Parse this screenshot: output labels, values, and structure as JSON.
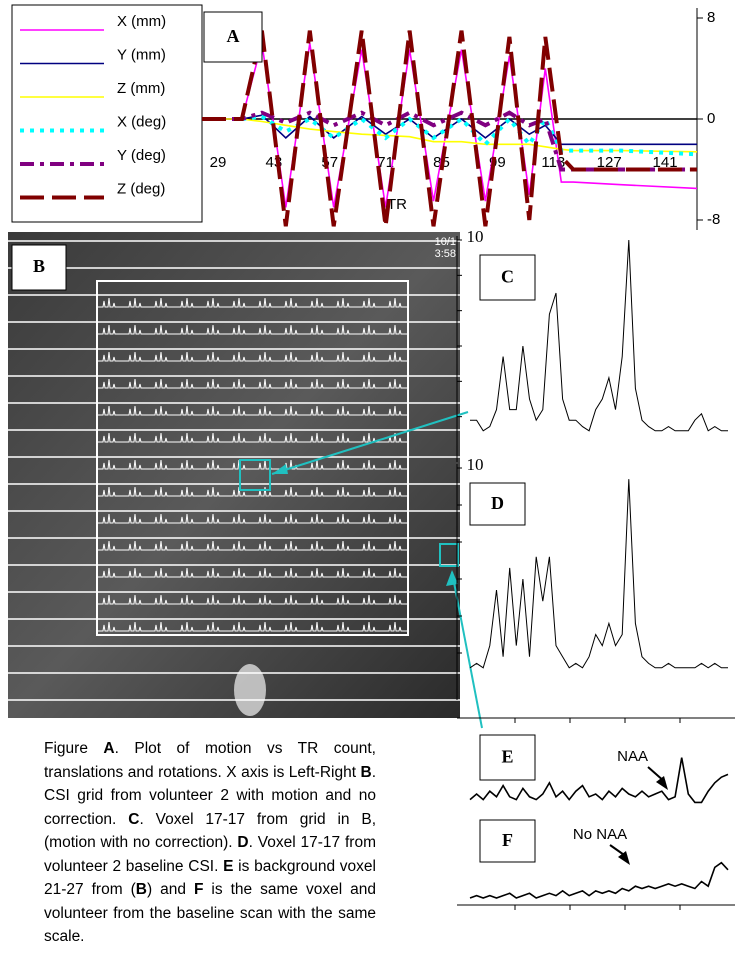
{
  "chart_data": [
    {
      "type": "line",
      "panel": "A",
      "xlabel": "TR",
      "x": [
        25,
        35,
        40,
        46,
        52,
        58,
        65,
        71,
        77,
        83,
        90,
        96,
        102,
        107,
        111,
        115,
        118,
        130,
        149
      ],
      "xlim": [
        25,
        149
      ],
      "xticks": [
        29,
        43,
        57,
        71,
        85,
        99,
        113,
        127,
        141
      ],
      "ylim": [
        -8,
        8
      ],
      "yticks": [
        8,
        0,
        -8
      ],
      "series": [
        {
          "name": "X (mm)",
          "color": "#ff00ff",
          "dash": "solid",
          "values": [
            0,
            0,
            6,
            -7,
            6,
            -7,
            5.5,
            -7,
            5.5,
            -6.5,
            5.5,
            -6.5,
            5,
            -6,
            4,
            -5,
            -5,
            -5.2,
            -5.5
          ]
        },
        {
          "name": "Y (mm)",
          "color": "#000080",
          "dash": "solid",
          "values": [
            0,
            0,
            0.3,
            -1.5,
            0.2,
            -1.5,
            0.2,
            -1.2,
            0,
            -1.5,
            0,
            -1.5,
            0,
            -1.2,
            -0.5,
            -2,
            -2,
            -2,
            -2
          ]
        },
        {
          "name": "Z (mm)",
          "color": "#ffff00",
          "dash": "solid",
          "values": [
            0,
            0,
            -0.2,
            -0.5,
            -0.8,
            -1,
            -1.2,
            -1.3,
            -1.4,
            -1.8,
            -1.8,
            -2,
            -2,
            -2,
            -2.2,
            -2.4,
            -2.5,
            -2.5,
            -2.6
          ]
        },
        {
          "name": "X (deg)",
          "color": "#00ffff",
          "dash": "dotted",
          "values": [
            0,
            0,
            0.2,
            -1,
            0,
            -1.5,
            0,
            -1.5,
            0,
            -1.5,
            0,
            -2,
            0,
            -2,
            0,
            -2.5,
            -2.5,
            -2.5,
            -2.8
          ]
        },
        {
          "name": "Y (deg)",
          "color": "#800080",
          "dash": "dashdot",
          "values": [
            0,
            0,
            0.5,
            -0.3,
            0.5,
            -0.5,
            0.5,
            -0.5,
            0.5,
            -0.5,
            0.5,
            -0.5,
            0.5,
            -0.5,
            0,
            -4,
            -4,
            -4,
            -4
          ]
        },
        {
          "name": "Z (deg)",
          "color": "#800000",
          "dash": "longdash",
          "values": [
            0,
            0,
            7,
            -8.5,
            7,
            -8.5,
            7,
            -8.5,
            7,
            -8.5,
            7,
            -8.5,
            6.5,
            -8,
            6.5,
            -3,
            -4,
            -4,
            -4
          ]
        }
      ]
    },
    {
      "type": "spectrum",
      "panel": "C",
      "color": "#000000",
      "ylim": [
        0,
        10
      ],
      "yticks": [
        10
      ],
      "values": [
        1.5,
        1.5,
        1,
        1.2,
        2,
        4.5,
        2,
        2,
        5,
        2.5,
        1.5,
        2,
        6.5,
        7.5,
        2.5,
        1.5,
        1.5,
        1.2,
        1,
        2,
        2.5,
        3.5,
        2,
        4.5,
        10,
        3,
        1.5,
        1.2,
        1,
        1,
        1.2,
        1,
        1,
        1,
        1.5,
        1.8,
        1,
        1.2,
        1,
        1
      ]
    },
    {
      "type": "spectrum",
      "panel": "D",
      "color": "#000000",
      "ylim": [
        0,
        10
      ],
      "yticks": [
        10
      ],
      "values": [
        1,
        1.2,
        1,
        2,
        4.5,
        1.5,
        5.5,
        2,
        5,
        1.5,
        6,
        4,
        6,
        2,
        1.5,
        1,
        1.2,
        1,
        1.5,
        2.5,
        2,
        3,
        2,
        2.5,
        9.5,
        3,
        1.5,
        1.2,
        1,
        1,
        1.2,
        1,
        1,
        1,
        1,
        1.2,
        1,
        1.2,
        1,
        1
      ]
    },
    {
      "type": "spectrum",
      "panel": "E",
      "color": "#000000",
      "ylim": [
        0,
        10
      ],
      "annotation": "NAA",
      "values": [
        1.5,
        2.5,
        1.5,
        3,
        2,
        4,
        2,
        1.5,
        3.5,
        2,
        1.5,
        2.5,
        4.5,
        2,
        3,
        1.5,
        3,
        4,
        2,
        2.5,
        1.5,
        3,
        2,
        3.5,
        2.5,
        2,
        3,
        2,
        2.5,
        3,
        1.5,
        2,
        9,
        2.5,
        1,
        1,
        3,
        4.5,
        5.5,
        6
      ]
    },
    {
      "type": "spectrum",
      "panel": "F",
      "color": "#000000",
      "ylim": [
        0,
        10
      ],
      "annotation": "No NAA",
      "values": [
        1.5,
        2,
        1.5,
        2,
        1.5,
        2,
        2.5,
        1.5,
        2,
        2.5,
        1.5,
        2,
        2.5,
        2,
        3,
        2,
        2.5,
        3,
        2,
        3,
        2.5,
        3,
        2.5,
        3.5,
        3,
        4,
        3.5,
        4,
        3.5,
        4,
        4.5,
        4,
        4.5,
        4,
        3.5,
        5,
        4,
        8,
        9,
        7.5
      ]
    }
  ],
  "panel_b": {
    "panel": "B",
    "timestamp": [
      "10/1",
      "3:58"
    ]
  },
  "caption": [
    {
      "text": "Figure ",
      "bold": false
    },
    {
      "text": "A",
      "bold": true
    },
    {
      "text": ". Plot of motion vs TR count, translations and rotations. X axis is Left-Right ",
      "bold": false
    },
    {
      "text": "B",
      "bold": true
    },
    {
      "text": ". CSI grid from volunteer 2 with motion and no correction. ",
      "bold": false
    },
    {
      "text": "C",
      "bold": true
    },
    {
      "text": ". Voxel 17-17 from grid in B, (motion with no correction). ",
      "bold": false
    },
    {
      "text": "D",
      "bold": true
    },
    {
      "text": ". Voxel 17-17 from volunteer 2 baseline CSI. ",
      "bold": false
    },
    {
      "text": "E",
      "bold": true
    },
    {
      "text": " is background voxel 21-27 from (",
      "bold": false
    },
    {
      "text": "B",
      "bold": true
    },
    {
      "text": ") and ",
      "bold": false
    },
    {
      "text": "F",
      "bold": true
    },
    {
      "text": " is the same voxel and volunteer from the baseline scan with the same scale.",
      "bold": false
    }
  ]
}
